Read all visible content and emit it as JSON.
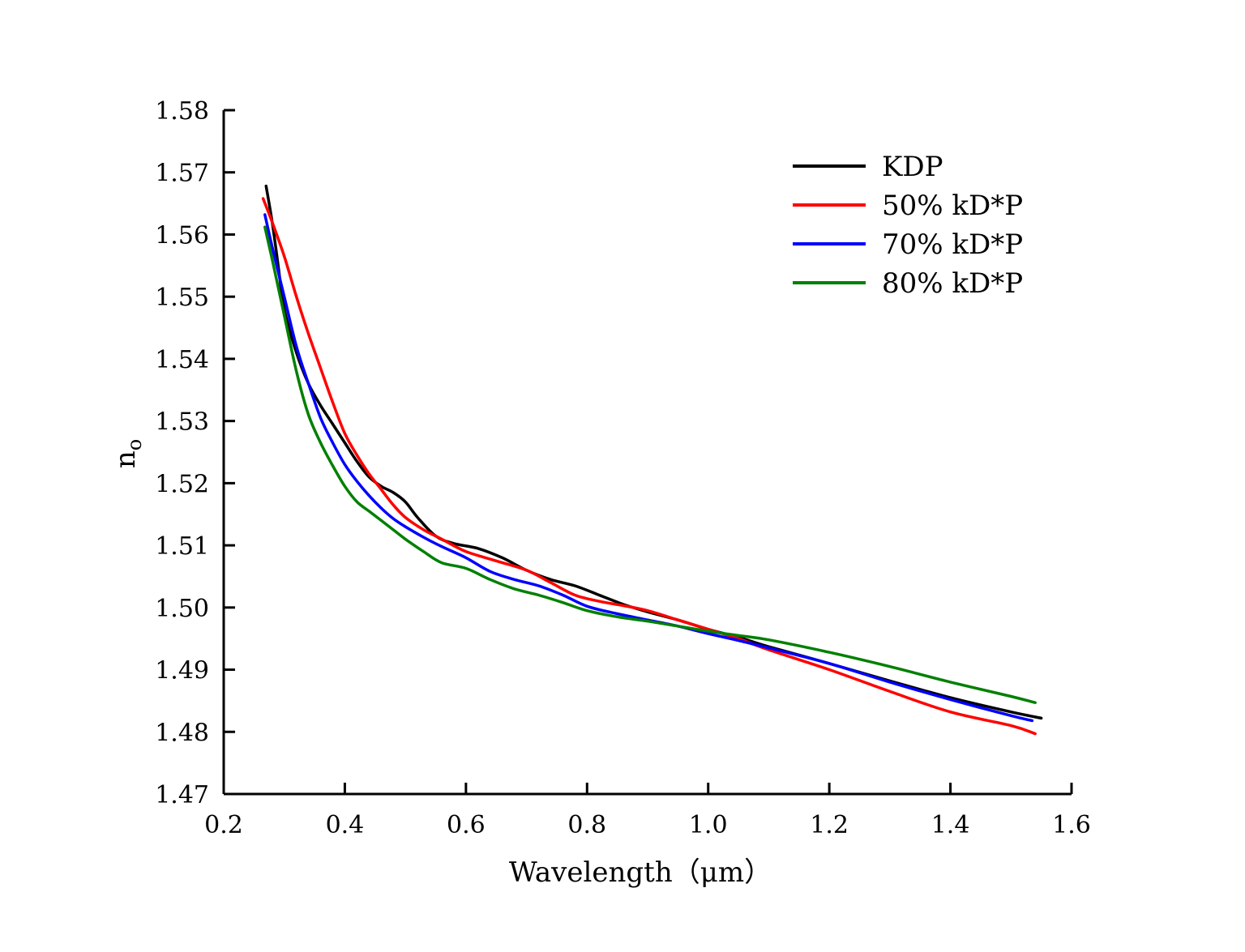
{
  "chart_data": {
    "type": "line",
    "xlabel": "Wavelength（μm）",
    "ylabel": "n",
    "ylabel_subscript": "o",
    "xlim": [
      0.2,
      1.6
    ],
    "ylim": [
      1.47,
      1.58
    ],
    "x_ticks": [
      0.2,
      0.4,
      0.6,
      0.8,
      1.0,
      1.2,
      1.4,
      1.6
    ],
    "x_tick_labels": [
      "0.2",
      "0.4",
      "0.6",
      "0.8",
      "1.0",
      "1.2",
      "1.4",
      "1.6"
    ],
    "y_ticks": [
      1.47,
      1.48,
      1.49,
      1.5,
      1.51,
      1.52,
      1.53,
      1.54,
      1.55,
      1.56,
      1.57,
      1.58
    ],
    "y_tick_labels": [
      "1.47",
      "1.48",
      "1.49",
      "1.50",
      "1.51",
      "1.52",
      "1.53",
      "1.54",
      "1.55",
      "1.56",
      "1.57",
      "1.58"
    ],
    "grid": false,
    "legend_position": "top-right",
    "series": [
      {
        "name": "KDP",
        "color": "#000000",
        "points": [
          [
            0.27,
            1.5678
          ],
          [
            0.28,
            1.562
          ],
          [
            0.29,
            1.555
          ],
          [
            0.3,
            1.548
          ],
          [
            0.32,
            1.541
          ],
          [
            0.34,
            1.536
          ],
          [
            0.36,
            1.5325
          ],
          [
            0.38,
            1.5295
          ],
          [
            0.4,
            1.5265
          ],
          [
            0.42,
            1.5235
          ],
          [
            0.44,
            1.521
          ],
          [
            0.46,
            1.5195
          ],
          [
            0.48,
            1.5185
          ],
          [
            0.5,
            1.517
          ],
          [
            0.52,
            1.5145
          ],
          [
            0.55,
            1.5115
          ],
          [
            0.58,
            1.5103
          ],
          [
            0.62,
            1.5095
          ],
          [
            0.66,
            1.508
          ],
          [
            0.7,
            1.506
          ],
          [
            0.74,
            1.5045
          ],
          [
            0.78,
            1.5035
          ],
          [
            0.82,
            1.502
          ],
          [
            0.86,
            1.5005
          ],
          [
            0.9,
            1.4993
          ],
          [
            0.95,
            1.498
          ],
          [
            1.0,
            1.4965
          ],
          [
            1.05,
            1.4952
          ],
          [
            1.1,
            1.4937
          ],
          [
            1.2,
            1.491
          ],
          [
            1.3,
            1.4882
          ],
          [
            1.4,
            1.4855
          ],
          [
            1.5,
            1.4832
          ],
          [
            1.55,
            1.4822
          ]
        ]
      },
      {
        "name": "50% kD*P",
        "color": "#ff0000",
        "points": [
          [
            0.265,
            1.5658
          ],
          [
            0.28,
            1.562
          ],
          [
            0.3,
            1.5565
          ],
          [
            0.32,
            1.55
          ],
          [
            0.34,
            1.544
          ],
          [
            0.36,
            1.5385
          ],
          [
            0.38,
            1.533
          ],
          [
            0.4,
            1.528
          ],
          [
            0.42,
            1.5245
          ],
          [
            0.44,
            1.5215
          ],
          [
            0.46,
            1.519
          ],
          [
            0.48,
            1.5165
          ],
          [
            0.5,
            1.5145
          ],
          [
            0.53,
            1.5125
          ],
          [
            0.56,
            1.511
          ],
          [
            0.6,
            1.509
          ],
          [
            0.65,
            1.5075
          ],
          [
            0.7,
            1.506
          ],
          [
            0.74,
            1.504
          ],
          [
            0.78,
            1.502
          ],
          [
            0.82,
            1.501
          ],
          [
            0.86,
            1.5003
          ],
          [
            0.9,
            1.4995
          ],
          [
            0.95,
            1.498
          ],
          [
            1.0,
            1.4965
          ],
          [
            1.05,
            1.495
          ],
          [
            1.1,
            1.4932
          ],
          [
            1.2,
            1.49
          ],
          [
            1.3,
            1.4865
          ],
          [
            1.4,
            1.4832
          ],
          [
            1.5,
            1.481
          ],
          [
            1.54,
            1.4797
          ]
        ]
      },
      {
        "name": "70% kD*P",
        "color": "#0000ff",
        "points": [
          [
            0.268,
            1.5632
          ],
          [
            0.28,
            1.558
          ],
          [
            0.3,
            1.55
          ],
          [
            0.32,
            1.542
          ],
          [
            0.34,
            1.536
          ],
          [
            0.36,
            1.5305
          ],
          [
            0.38,
            1.5265
          ],
          [
            0.4,
            1.523
          ],
          [
            0.42,
            1.5203
          ],
          [
            0.44,
            1.518
          ],
          [
            0.46,
            1.516
          ],
          [
            0.48,
            1.5143
          ],
          [
            0.5,
            1.513
          ],
          [
            0.53,
            1.5113
          ],
          [
            0.56,
            1.5098
          ],
          [
            0.6,
            1.508
          ],
          [
            0.64,
            1.5058
          ],
          [
            0.68,
            1.5045
          ],
          [
            0.72,
            1.5035
          ],
          [
            0.76,
            1.502
          ],
          [
            0.8,
            1.5002
          ],
          [
            0.85,
            1.499
          ],
          [
            0.9,
            1.498
          ],
          [
            0.95,
            1.497
          ],
          [
            1.0,
            1.4958
          ],
          [
            1.05,
            1.4947
          ],
          [
            1.1,
            1.4935
          ],
          [
            1.2,
            1.491
          ],
          [
            1.3,
            1.488
          ],
          [
            1.4,
            1.4852
          ],
          [
            1.5,
            1.4826
          ],
          [
            1.535,
            1.4818
          ]
        ]
      },
      {
        "name": "80% kD*P",
        "color": "#008000",
        "points": [
          [
            0.268,
            1.5612
          ],
          [
            0.28,
            1.556
          ],
          [
            0.3,
            1.547
          ],
          [
            0.32,
            1.538
          ],
          [
            0.34,
            1.531
          ],
          [
            0.36,
            1.5265
          ],
          [
            0.38,
            1.5228
          ],
          [
            0.4,
            1.5195
          ],
          [
            0.42,
            1.517
          ],
          [
            0.44,
            1.5155
          ],
          [
            0.46,
            1.514
          ],
          [
            0.48,
            1.5125
          ],
          [
            0.5,
            1.511
          ],
          [
            0.53,
            1.509
          ],
          [
            0.56,
            1.5072
          ],
          [
            0.6,
            1.5063
          ],
          [
            0.64,
            1.5045
          ],
          [
            0.68,
            1.503
          ],
          [
            0.72,
            1.502
          ],
          [
            0.76,
            1.5008
          ],
          [
            0.8,
            1.4995
          ],
          [
            0.85,
            1.4985
          ],
          [
            0.9,
            1.4978
          ],
          [
            0.95,
            1.497
          ],
          [
            1.0,
            1.4962
          ],
          [
            1.05,
            1.4955
          ],
          [
            1.1,
            1.4948
          ],
          [
            1.2,
            1.4928
          ],
          [
            1.3,
            1.4905
          ],
          [
            1.4,
            1.488
          ],
          [
            1.5,
            1.4857
          ],
          [
            1.54,
            1.4847
          ]
        ]
      }
    ]
  }
}
